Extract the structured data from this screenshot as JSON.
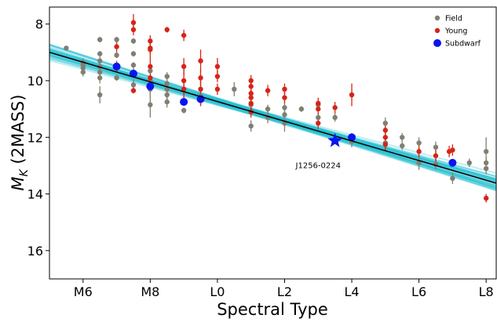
{
  "chart_data": {
    "type": "scatter",
    "xlabel": "Spectral Type",
    "ylabel_main": "M",
    "ylabel_sub": "K",
    "ylabel_rest": " (2MASS)",
    "x_ticks": [
      {
        "v": 6,
        "label": "M6"
      },
      {
        "v": 8,
        "label": "M8"
      },
      {
        "v": 10,
        "label": "L0"
      },
      {
        "v": 12,
        "label": "L2"
      },
      {
        "v": 14,
        "label": "L4"
      },
      {
        "v": 16,
        "label": "L6"
      },
      {
        "v": 18,
        "label": "L8"
      }
    ],
    "y_ticks": [
      {
        "v": 8,
        "label": "8"
      },
      {
        "v": 10,
        "label": "10"
      },
      {
        "v": 12,
        "label": "12"
      },
      {
        "v": 14,
        "label": "14"
      },
      {
        "v": 16,
        "label": "16"
      }
    ],
    "xlim": [
      5.0,
      18.3
    ],
    "ylim": [
      17.0,
      7.4
    ],
    "y_inverted": true,
    "grid": false,
    "legend_position": "top-right",
    "legend": [
      {
        "name": "Field",
        "color": "#7f7f73",
        "marker": "circle-small"
      },
      {
        "name": "Young",
        "color": "#d62418",
        "marker": "circle-small"
      },
      {
        "name": "Subdwarf",
        "color": "#0a14f0",
        "marker": "circle-large"
      }
    ],
    "fit_line": {
      "color": "#000000",
      "x": [
        5.0,
        18.3
      ],
      "y": [
        9.0,
        13.62
      ]
    },
    "fit_band_color": "#1fbfcf",
    "highlight": {
      "label": "J1256-0224",
      "x": 13.5,
      "y": 12.12,
      "color": "#0a14f0",
      "marker": "star"
    },
    "series": [
      {
        "name": "Field",
        "color": "#7f7f73",
        "points": [
          {
            "x": 5.5,
            "y": 8.85,
            "err": 0.05
          },
          {
            "x": 6.0,
            "y": 9.35,
            "err": 0.15
          },
          {
            "x": 6.0,
            "y": 9.55,
            "err": 0.2
          },
          {
            "x": 6.0,
            "y": 9.7,
            "err": 0.15
          },
          {
            "x": 6.0,
            "y": 9.45,
            "err": 0.1
          },
          {
            "x": 6.5,
            "y": 8.55,
            "err": 0.1
          },
          {
            "x": 6.5,
            "y": 9.05,
            "err": 0.1
          },
          {
            "x": 6.5,
            "y": 9.3,
            "err": 0.15
          },
          {
            "x": 6.5,
            "y": 9.5,
            "err": 0.1
          },
          {
            "x": 6.5,
            "y": 9.7,
            "err": 0.15
          },
          {
            "x": 6.5,
            "y": 9.9,
            "err": 0.2
          },
          {
            "x": 6.5,
            "y": 10.5,
            "err": 0.3
          },
          {
            "x": 7.0,
            "y": 8.55,
            "err": 0.1
          },
          {
            "x": 7.0,
            "y": 9.1,
            "err": 0.1
          },
          {
            "x": 7.0,
            "y": 9.55,
            "err": 0.15
          },
          {
            "x": 7.0,
            "y": 9.9,
            "err": 0.1
          },
          {
            "x": 7.5,
            "y": 8.6,
            "err": 0.1
          },
          {
            "x": 7.5,
            "y": 9.05,
            "err": 0.1
          },
          {
            "x": 7.5,
            "y": 9.45,
            "err": 0.1
          },
          {
            "x": 7.5,
            "y": 9.7,
            "err": 0.15
          },
          {
            "x": 7.5,
            "y": 10.15,
            "err": 0.2
          },
          {
            "x": 8.0,
            "y": 9.65,
            "err": 0.1
          },
          {
            "x": 8.0,
            "y": 10.0,
            "err": 0.15
          },
          {
            "x": 8.0,
            "y": 10.2,
            "err": 0.15
          },
          {
            "x": 8.0,
            "y": 10.3,
            "err": 0.2
          },
          {
            "x": 8.0,
            "y": 10.85,
            "err": 0.45
          },
          {
            "x": 8.5,
            "y": 9.85,
            "err": 0.15
          },
          {
            "x": 8.5,
            "y": 10.1,
            "err": 0.1
          },
          {
            "x": 8.5,
            "y": 10.3,
            "err": 0.15
          },
          {
            "x": 8.5,
            "y": 10.5,
            "err": 0.2
          },
          {
            "x": 8.5,
            "y": 10.75,
            "err": 0.2
          },
          {
            "x": 9.0,
            "y": 10.7,
            "err": 0.15
          },
          {
            "x": 9.0,
            "y": 11.05,
            "err": 0.1
          },
          {
            "x": 9.5,
            "y": 10.55,
            "err": 0.15
          },
          {
            "x": 9.5,
            "y": 10.7,
            "err": 0.2
          },
          {
            "x": 10.5,
            "y": 10.3,
            "err": 0.25
          },
          {
            "x": 11.0,
            "y": 10.85,
            "err": 0.2
          },
          {
            "x": 11.0,
            "y": 11.6,
            "err": 0.2
          },
          {
            "x": 11.5,
            "y": 11.0,
            "err": 0.15
          },
          {
            "x": 11.5,
            "y": 11.3,
            "err": 0.2
          },
          {
            "x": 12.0,
            "y": 10.95,
            "err": 0.2
          },
          {
            "x": 12.0,
            "y": 11.2,
            "err": 0.25
          },
          {
            "x": 12.0,
            "y": 11.5,
            "err": 0.3
          },
          {
            "x": 12.5,
            "y": 11.0,
            "err": 0.1
          },
          {
            "x": 13.0,
            "y": 10.85,
            "err": 0.15
          },
          {
            "x": 13.0,
            "y": 11.3,
            "err": 0.15
          },
          {
            "x": 13.5,
            "y": 11.3,
            "err": 0.15
          },
          {
            "x": 14.0,
            "y": 12.0,
            "err": 0.15
          },
          {
            "x": 14.0,
            "y": 12.15,
            "err": 0.2
          },
          {
            "x": 15.0,
            "y": 11.5,
            "err": 0.2
          },
          {
            "x": 15.0,
            "y": 12.2,
            "err": 0.2
          },
          {
            "x": 15.5,
            "y": 12.0,
            "err": 0.15
          },
          {
            "x": 15.5,
            "y": 12.3,
            "err": 0.15
          },
          {
            "x": 16.0,
            "y": 12.2,
            "err": 0.2
          },
          {
            "x": 16.0,
            "y": 12.9,
            "err": 0.25
          },
          {
            "x": 16.5,
            "y": 12.35,
            "err": 0.2
          },
          {
            "x": 16.5,
            "y": 12.95,
            "err": 0.2
          },
          {
            "x": 17.0,
            "y": 13.45,
            "err": 0.2
          },
          {
            "x": 17.5,
            "y": 12.9,
            "err": 0.15
          },
          {
            "x": 18.0,
            "y": 12.5,
            "err": 0.5
          },
          {
            "x": 18.0,
            "y": 12.9,
            "err": 0.2
          },
          {
            "x": 18.0,
            "y": 13.1,
            "err": 0.2
          }
        ]
      },
      {
        "name": "Young",
        "color": "#d62418",
        "points": [
          {
            "x": 7.0,
            "y": 8.8,
            "err": 0.2
          },
          {
            "x": 7.0,
            "y": 9.5,
            "err": 0.2
          },
          {
            "x": 7.5,
            "y": 7.95,
            "err": 0.3
          },
          {
            "x": 7.5,
            "y": 8.2,
            "err": 0.2
          },
          {
            "x": 7.5,
            "y": 10.35,
            "err": 0.1
          },
          {
            "x": 8.0,
            "y": 8.6,
            "err": 0.2
          },
          {
            "x": 8.0,
            "y": 8.85,
            "err": 0.2
          },
          {
            "x": 8.0,
            "y": 8.9,
            "err": 0.4
          },
          {
            "x": 8.0,
            "y": 9.5,
            "err": 0.2
          },
          {
            "x": 8.0,
            "y": 9.9,
            "err": 0.2
          },
          {
            "x": 8.5,
            "y": 8.2,
            "err": 0.1
          },
          {
            "x": 9.0,
            "y": 8.4,
            "err": 0.2
          },
          {
            "x": 9.0,
            "y": 9.5,
            "err": 0.3
          },
          {
            "x": 9.0,
            "y": 10.0,
            "err": 0.6
          },
          {
            "x": 9.0,
            "y": 10.3,
            "err": 0.2
          },
          {
            "x": 9.5,
            "y": 9.3,
            "err": 0.4
          },
          {
            "x": 9.5,
            "y": 9.9,
            "err": 0.3
          },
          {
            "x": 9.5,
            "y": 10.3,
            "err": 0.3
          },
          {
            "x": 9.5,
            "y": 10.7,
            "err": 0.2
          },
          {
            "x": 10.0,
            "y": 9.5,
            "err": 0.3
          },
          {
            "x": 10.0,
            "y": 9.85,
            "err": 0.2
          },
          {
            "x": 10.0,
            "y": 10.3,
            "err": 0.2
          },
          {
            "x": 11.0,
            "y": 10.0,
            "err": 0.2
          },
          {
            "x": 11.0,
            "y": 10.2,
            "err": 0.2
          },
          {
            "x": 11.0,
            "y": 10.45,
            "err": 0.2
          },
          {
            "x": 11.0,
            "y": 10.6,
            "err": 0.2
          },
          {
            "x": 11.0,
            "y": 10.8,
            "err": 0.2
          },
          {
            "x": 11.0,
            "y": 11.1,
            "err": 0.2
          },
          {
            "x": 11.5,
            "y": 10.35,
            "err": 0.2
          },
          {
            "x": 12.0,
            "y": 10.3,
            "err": 0.2
          },
          {
            "x": 12.0,
            "y": 10.6,
            "err": 0.2
          },
          {
            "x": 13.0,
            "y": 10.8,
            "err": 0.2
          },
          {
            "x": 13.0,
            "y": 11.0,
            "err": 0.2
          },
          {
            "x": 13.0,
            "y": 11.5,
            "err": 0.2
          },
          {
            "x": 13.5,
            "y": 10.95,
            "err": 0.2
          },
          {
            "x": 14.0,
            "y": 10.5,
            "err": 0.4
          },
          {
            "x": 15.0,
            "y": 11.75,
            "err": 0.2
          },
          {
            "x": 15.0,
            "y": 12.0,
            "err": 0.2
          },
          {
            "x": 15.0,
            "y": 12.25,
            "err": 0.2
          },
          {
            "x": 16.0,
            "y": 12.5,
            "err": 0.2
          },
          {
            "x": 16.5,
            "y": 12.65,
            "err": 0.2
          },
          {
            "x": 16.9,
            "y": 12.5,
            "err": 0.2
          },
          {
            "x": 17.0,
            "y": 12.45,
            "err": 0.2
          },
          {
            "x": 18.0,
            "y": 14.15,
            "err": 0.15
          }
        ]
      },
      {
        "name": "Subdwarf",
        "color": "#0a14f0",
        "points": [
          {
            "x": 7.0,
            "y": 9.5,
            "err": 0
          },
          {
            "x": 7.5,
            "y": 9.75,
            "err": 0
          },
          {
            "x": 8.0,
            "y": 10.2,
            "err": 0
          },
          {
            "x": 9.0,
            "y": 10.75,
            "err": 0
          },
          {
            "x": 9.5,
            "y": 10.65,
            "err": 0
          },
          {
            "x": 14.0,
            "y": 12.0,
            "err": 0
          },
          {
            "x": 17.0,
            "y": 12.9,
            "err": 0
          }
        ]
      }
    ]
  }
}
